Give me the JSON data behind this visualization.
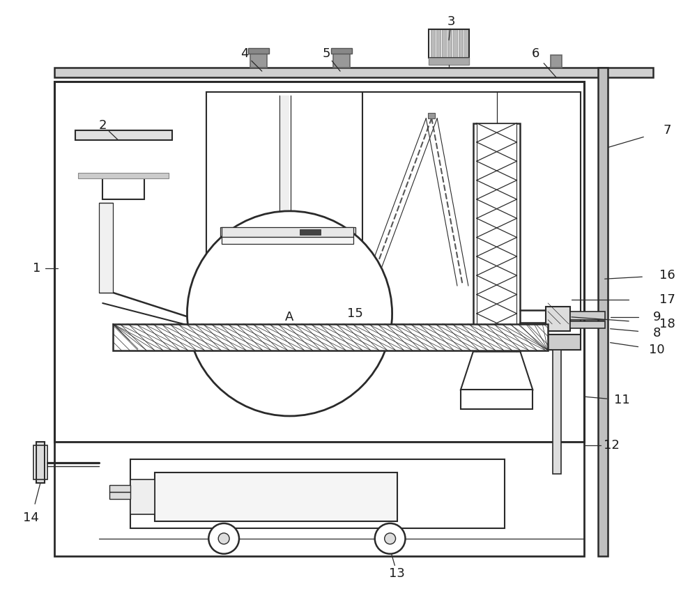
{
  "fig_width": 10.0,
  "fig_height": 8.71,
  "dpi": 100,
  "bg_color": "#ffffff",
  "lc": "#2a2a2a",
  "lw": 1.8,
  "tlw": 0.9
}
